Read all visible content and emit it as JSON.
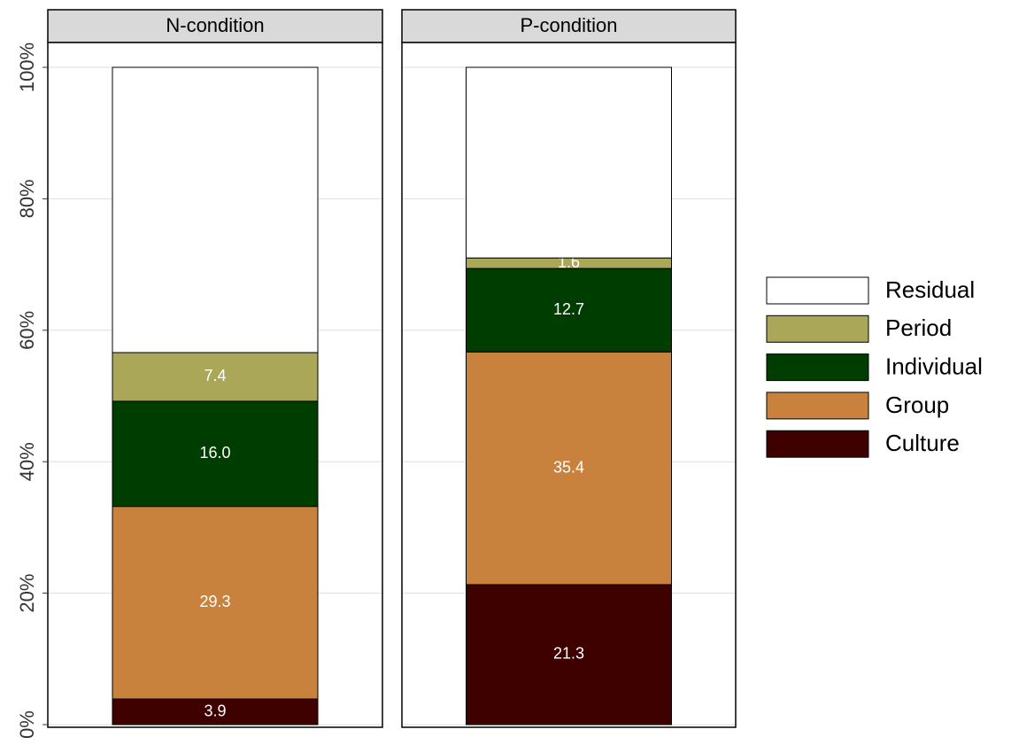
{
  "chart_data": {
    "type": "bar",
    "stacked": true,
    "categories": [
      "N-condition",
      "P-condition"
    ],
    "series": [
      {
        "name": "Culture",
        "color": "#3f0000",
        "values": [
          3.9,
          21.3
        ],
        "value_labels": [
          "3.9",
          "21.3"
        ]
      },
      {
        "name": "Group",
        "color": "#c8823e",
        "values": [
          29.3,
          35.4
        ],
        "value_labels": [
          "29.3",
          "35.4"
        ]
      },
      {
        "name": "Individual",
        "color": "#003d00",
        "values": [
          16.0,
          12.7
        ],
        "value_labels": [
          "16.0",
          "12.7"
        ]
      },
      {
        "name": "Period",
        "color": "#aaa858",
        "values": [
          7.4,
          1.6
        ],
        "value_labels": [
          "7.4",
          "1.6"
        ]
      },
      {
        "name": "Residual",
        "color": "#ffffff",
        "values": [
          43.4,
          29.0
        ],
        "value_labels": [
          null,
          null
        ]
      }
    ],
    "ylim": [
      0,
      100
    ],
    "yticks": [
      {
        "value": 0,
        "label": "0%"
      },
      {
        "value": 20,
        "label": "20%"
      },
      {
        "value": 40,
        "label": "40%"
      },
      {
        "value": 60,
        "label": "60%"
      },
      {
        "value": 80,
        "label": "80%"
      },
      {
        "value": 100,
        "label": "100%"
      }
    ],
    "grid": true
  }
}
